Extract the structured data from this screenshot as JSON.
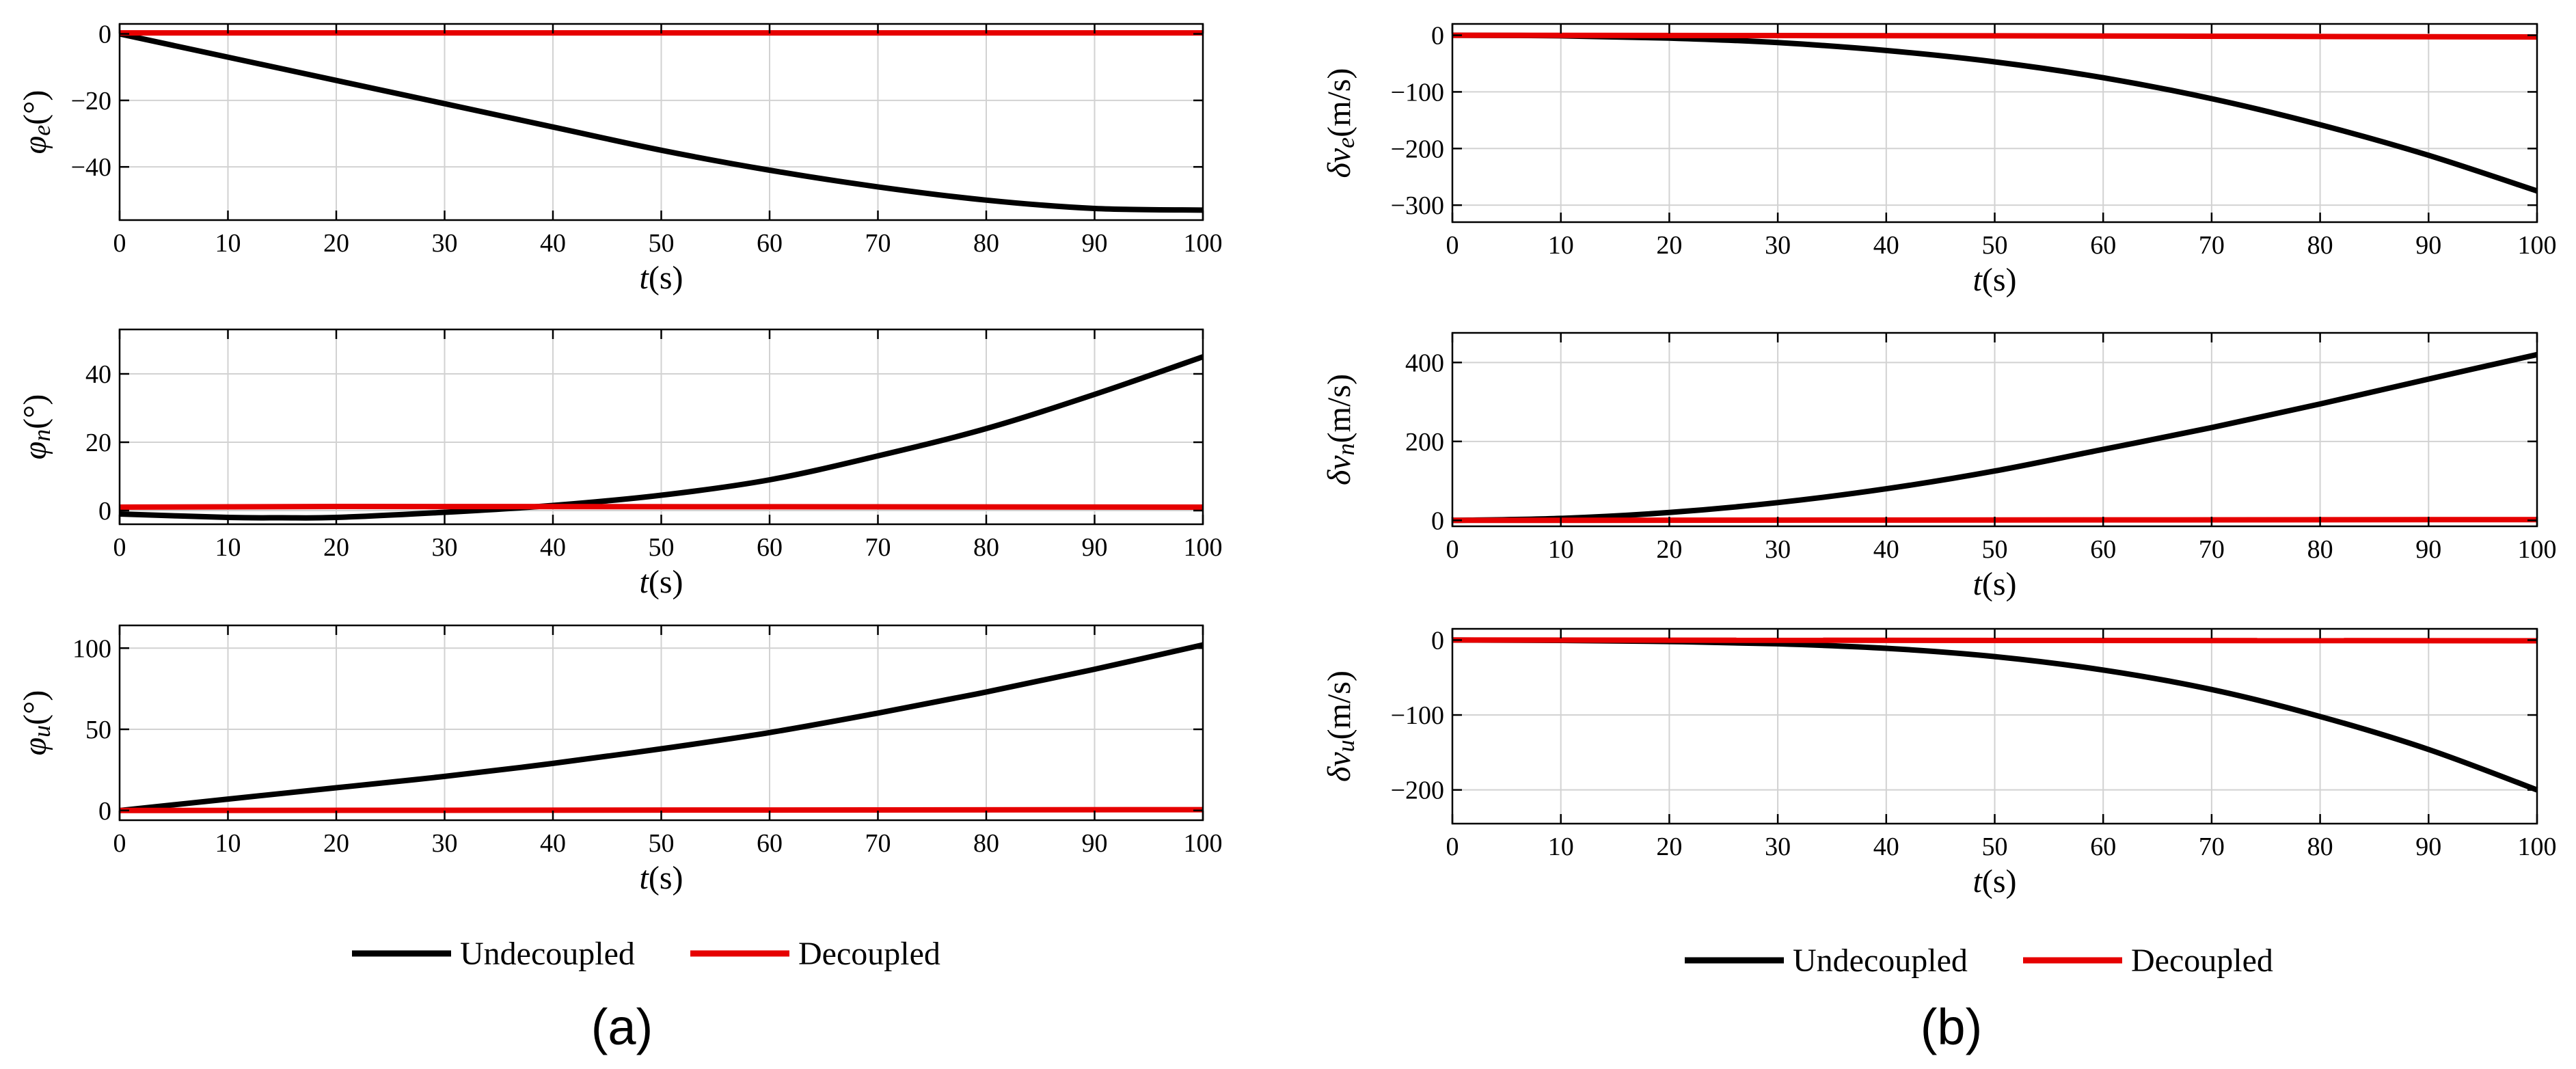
{
  "figure": {
    "panel_labels": [
      "(a)",
      "(b)"
    ],
    "legend": {
      "entries": [
        {
          "label": "Undecoupled",
          "color": "#000000"
        },
        {
          "label": "Decoupled",
          "color": "#e60000"
        }
      ]
    }
  },
  "chart_data": [
    {
      "type": "line",
      "panel": "(a)",
      "ylabel_symbol": "φ",
      "ylabel_sub": "e",
      "ylabel_unit": "(°)",
      "xlabel_main": "t",
      "xlabel_unit": "(s)",
      "xlim": [
        0,
        100
      ],
      "ylim": [
        -56,
        3
      ],
      "xticks": [
        0,
        10,
        20,
        30,
        40,
        50,
        60,
        70,
        80,
        90,
        100
      ],
      "yticks": [
        0,
        -20,
        -40
      ],
      "ytick_labels": [
        "0",
        "−20",
        "−40"
      ],
      "grid": true,
      "series": [
        {
          "name": "Undecoupled",
          "color": "#000000",
          "x": [
            0,
            10,
            20,
            30,
            40,
            50,
            60,
            70,
            80,
            90,
            100
          ],
          "y": [
            0,
            -7,
            -14,
            -21,
            -28,
            -35,
            -41,
            -46,
            -50,
            -52.5,
            -53
          ]
        },
        {
          "name": "Decoupled",
          "color": "#e60000",
          "x": [
            0,
            100
          ],
          "y": [
            0.3,
            0.3
          ]
        }
      ]
    },
    {
      "type": "line",
      "panel": "(a)",
      "ylabel_symbol": "φ",
      "ylabel_sub": "n",
      "ylabel_unit": "(°)",
      "xlabel_main": "t",
      "xlabel_unit": "(s)",
      "xlim": [
        0,
        100
      ],
      "ylim": [
        -4,
        53
      ],
      "xticks": [
        0,
        10,
        20,
        30,
        40,
        50,
        60,
        70,
        80,
        90,
        100
      ],
      "yticks": [
        0,
        20,
        40
      ],
      "ytick_labels": [
        "0",
        "20",
        "40"
      ],
      "grid": true,
      "series": [
        {
          "name": "Undecoupled",
          "color": "#000000",
          "x": [
            0,
            10,
            15,
            20,
            30,
            40,
            50,
            60,
            70,
            80,
            90,
            100
          ],
          "y": [
            -1,
            -2,
            -2.1,
            -2,
            -0.5,
            1.5,
            4.5,
            9,
            16,
            24,
            34,
            45
          ]
        },
        {
          "name": "Decoupled",
          "color": "#e60000",
          "x": [
            0,
            20,
            100
          ],
          "y": [
            1,
            1.2,
            1
          ]
        }
      ]
    },
    {
      "type": "line",
      "panel": "(a)",
      "ylabel_symbol": "φ",
      "ylabel_sub": "u",
      "ylabel_unit": "(°)",
      "xlabel_main": "t",
      "xlabel_unit": "(s)",
      "xlim": [
        0,
        100
      ],
      "ylim": [
        -6,
        114
      ],
      "xticks": [
        0,
        10,
        20,
        30,
        40,
        50,
        60,
        70,
        80,
        90,
        100
      ],
      "yticks": [
        0,
        50,
        100
      ],
      "ytick_labels": [
        "0",
        "50",
        "100"
      ],
      "grid": true,
      "series": [
        {
          "name": "Undecoupled",
          "color": "#000000",
          "x": [
            0,
            10,
            20,
            30,
            40,
            50,
            60,
            70,
            80,
            90,
            100
          ],
          "y": [
            0,
            7,
            14,
            21,
            29,
            38,
            48,
            60,
            73,
            87,
            102
          ]
        },
        {
          "name": "Decoupled",
          "color": "#e60000",
          "x": [
            0,
            100
          ],
          "y": [
            0,
            0.5
          ]
        }
      ]
    },
    {
      "type": "line",
      "panel": "(b)",
      "ylabel_symbol": "δv",
      "ylabel_sub": "e",
      "ylabel_unit": "(m/s)",
      "xlabel_main": "t",
      "xlabel_unit": "(s)",
      "xlim": [
        0,
        100
      ],
      "ylim": [
        -330,
        20
      ],
      "xticks": [
        0,
        10,
        20,
        30,
        40,
        50,
        60,
        70,
        80,
        90,
        100
      ],
      "yticks": [
        0,
        -100,
        -200,
        -300
      ],
      "ytick_labels": [
        "0",
        "−100",
        "−200",
        "−300"
      ],
      "grid": true,
      "series": [
        {
          "name": "Undecoupled",
          "color": "#000000",
          "x": [
            0,
            10,
            20,
            30,
            40,
            50,
            60,
            70,
            80,
            90,
            100
          ],
          "y": [
            0,
            -1,
            -5,
            -13,
            -27,
            -47,
            -75,
            -112,
            -158,
            -212,
            -275
          ]
        },
        {
          "name": "Decoupled",
          "color": "#e60000",
          "x": [
            0,
            50,
            100
          ],
          "y": [
            0,
            -1,
            -3
          ]
        }
      ]
    },
    {
      "type": "line",
      "panel": "(b)",
      "ylabel_symbol": "δv",
      "ylabel_sub": "n",
      "ylabel_unit": "(m/s)",
      "xlabel_main": "t",
      "xlabel_unit": "(s)",
      "xlim": [
        0,
        100
      ],
      "ylim": [
        -15,
        475
      ],
      "xticks": [
        0,
        10,
        20,
        30,
        40,
        50,
        60,
        70,
        80,
        90,
        100
      ],
      "yticks": [
        0,
        200,
        400
      ],
      "ytick_labels": [
        "0",
        "200",
        "400"
      ],
      "grid": true,
      "series": [
        {
          "name": "Undecoupled",
          "color": "#000000",
          "x": [
            0,
            10,
            20,
            30,
            40,
            50,
            60,
            70,
            80,
            90,
            100
          ],
          "y": [
            0,
            5,
            20,
            45,
            80,
            125,
            180,
            235,
            295,
            358,
            420
          ]
        },
        {
          "name": "Decoupled",
          "color": "#e60000",
          "x": [
            0,
            100
          ],
          "y": [
            0,
            2
          ]
        }
      ]
    },
    {
      "type": "line",
      "panel": "(b)",
      "ylabel_symbol": "δv",
      "ylabel_sub": "u",
      "ylabel_unit": "(m/s)",
      "xlabel_main": "t",
      "xlabel_unit": "(s)",
      "xlim": [
        0,
        100
      ],
      "ylim": [
        -245,
        15
      ],
      "xticks": [
        0,
        10,
        20,
        30,
        40,
        50,
        60,
        70,
        80,
        90,
        100
      ],
      "yticks": [
        0,
        -100,
        -200
      ],
      "ytick_labels": [
        "0",
        "−100",
        "−200"
      ],
      "grid": true,
      "series": [
        {
          "name": "Undecoupled",
          "color": "#000000",
          "x": [
            0,
            10,
            20,
            30,
            40,
            50,
            60,
            70,
            80,
            90,
            100
          ],
          "y": [
            0,
            -0.5,
            -2,
            -5,
            -11,
            -22,
            -40,
            -66,
            -102,
            -146,
            -200
          ]
        },
        {
          "name": "Decoupled",
          "color": "#e60000",
          "x": [
            0,
            100
          ],
          "y": [
            0,
            -1
          ]
        }
      ]
    }
  ]
}
